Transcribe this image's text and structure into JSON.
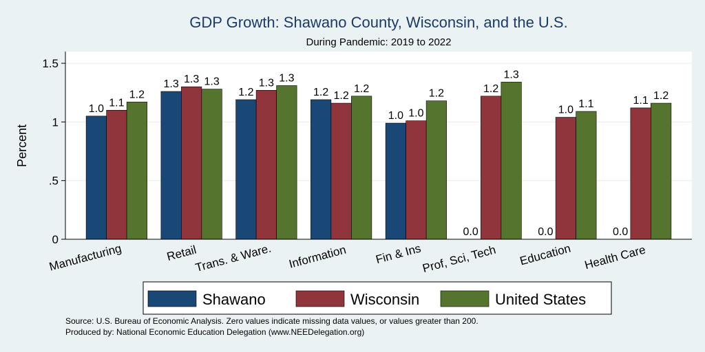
{
  "chart_data": {
    "type": "bar",
    "title": "GDP Growth: Shawano County, Wisconsin, and the U.S.",
    "subtitle": "During Pandemic: 2019 to 2022",
    "xlabel": "",
    "ylabel": "Percent",
    "ylim": [
      0,
      1.6
    ],
    "yticks": [
      0,
      0.5,
      1,
      1.5
    ],
    "ytick_labels": [
      "0",
      ".5",
      "1",
      "1.5"
    ],
    "grid": true,
    "legend_position": "bottom",
    "categories": [
      "Manufacturing",
      "Retail",
      "Trans. & Ware.",
      "Information",
      "Fin & Ins",
      "Prof, Sci, Tech",
      "Education",
      "Health Care"
    ],
    "series": [
      {
        "name": "Shawano",
        "color": "#1a4876",
        "values": [
          1.05,
          1.26,
          1.19,
          1.19,
          0.99,
          0,
          0,
          0
        ],
        "labels": [
          "1.0",
          "1.3",
          "1.2",
          "1.2",
          "1.0",
          "0.0",
          "0.0",
          "0.0"
        ]
      },
      {
        "name": "Wisconsin",
        "color": "#90353b",
        "values": [
          1.1,
          1.3,
          1.27,
          1.16,
          1.01,
          1.22,
          1.04,
          1.12
        ],
        "labels": [
          "1.1",
          "1.3",
          "1.3",
          "1.2",
          "1.0",
          "1.2",
          "1.0",
          "1.1"
        ]
      },
      {
        "name": "United States",
        "color": "#55752f",
        "values": [
          1.17,
          1.28,
          1.31,
          1.22,
          1.18,
          1.34,
          1.09,
          1.16
        ],
        "labels": [
          "1.2",
          "1.3",
          "1.3",
          "1.2",
          "1.2",
          "1.3",
          "1.1",
          "1.2"
        ]
      }
    ],
    "notes": [
      "Source: U.S. Bureau of Economic Analysis. Zero values indicate missing data values, or values greater than 200.",
      "Produced by: National Economic Education Delegation (www.NEEDelegation.org)"
    ]
  }
}
